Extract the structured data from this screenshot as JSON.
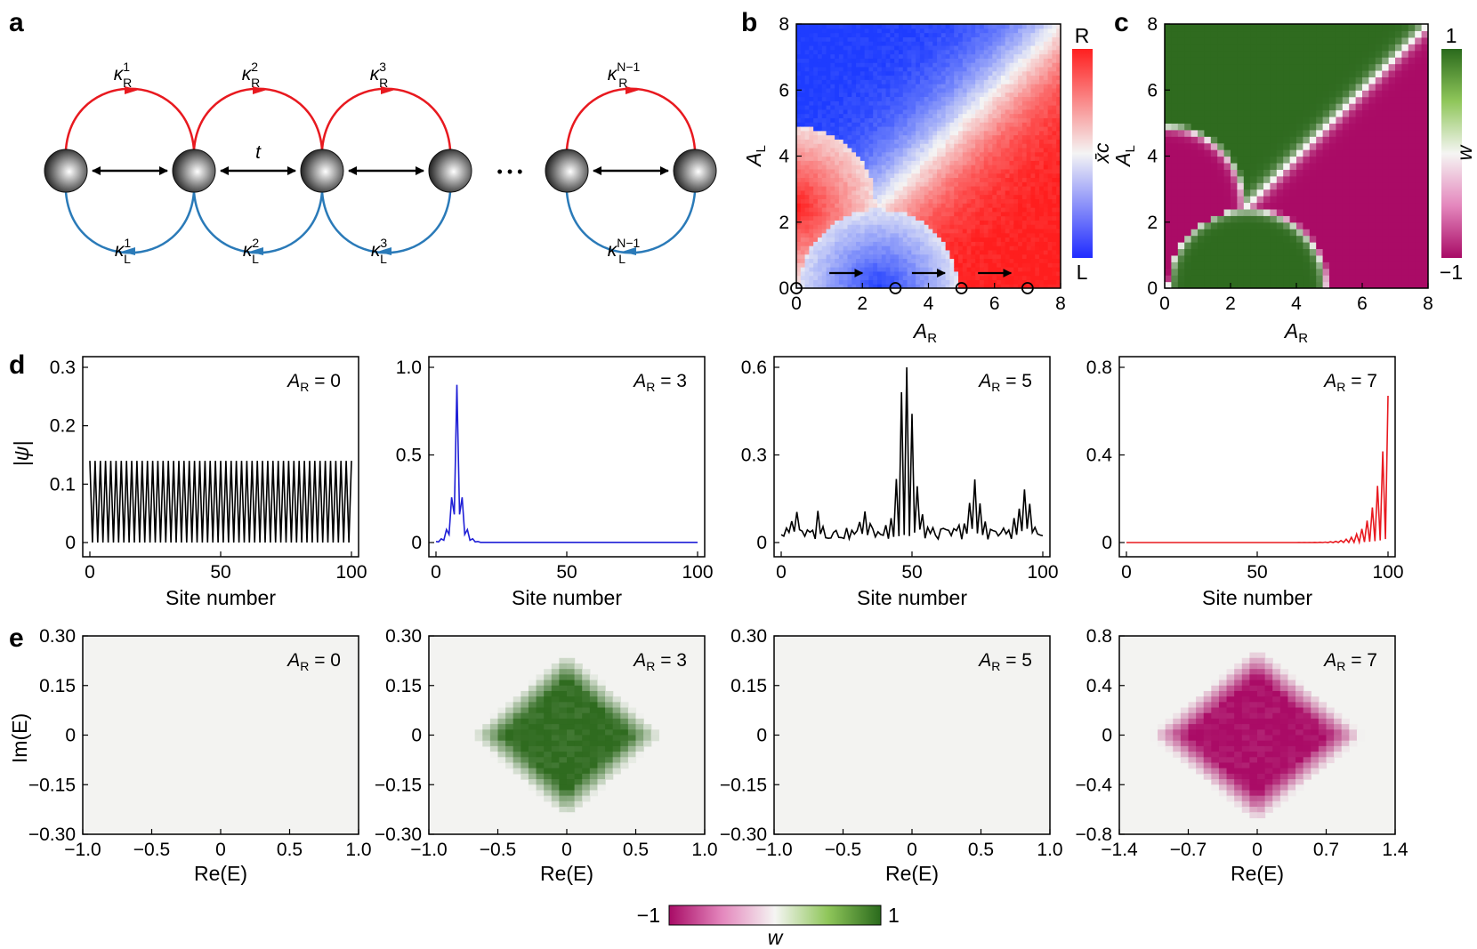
{
  "panel_labels": {
    "a": "a",
    "b": "b",
    "c": "c",
    "d": "d",
    "e": "e"
  },
  "panel_a": {
    "kappa_R": [
      "1",
      "2",
      "3",
      "N−1"
    ],
    "kappa_L": [
      "1",
      "2",
      "3",
      "N−1"
    ],
    "kappa_symbol": "κ",
    "kappa_R_sub": "R",
    "kappa_L_sub": "L",
    "hop_label": "t",
    "ellipsis": "• • •",
    "colors": {
      "right": "#e8191f",
      "left": "#2a7ab8"
    }
  },
  "panel_b": {
    "x_ticks": [
      "0",
      "2",
      "4",
      "6",
      "8"
    ],
    "y_ticks": [
      "0",
      "2",
      "4",
      "6",
      "8"
    ],
    "xlabel_main": "A",
    "xlabel_sub": "R",
    "ylabel_main": "A",
    "ylabel_sub": "L",
    "colorbar_top": "R",
    "colorbar_bottom": "L",
    "colorbar_label": "x̄c",
    "circle_markers_AR": [
      0,
      3,
      5,
      7
    ],
    "arrows_AR": [
      [
        1,
        2
      ],
      [
        3.5,
        4.5
      ],
      [
        5.5,
        6.5
      ]
    ]
  },
  "panel_c": {
    "x_ticks": [
      "0",
      "2",
      "4",
      "6",
      "8"
    ],
    "y_ticks": [
      "0",
      "2",
      "4",
      "6",
      "8"
    ],
    "xlabel_main": "A",
    "xlabel_sub": "R",
    "ylabel_main": "A",
    "ylabel_sub": "L",
    "colorbar_top": "1",
    "colorbar_bottom": "−1",
    "colorbar_label": "w"
  },
  "panel_d": {
    "ylabel": "|ψ|",
    "xlabel": "Site number",
    "plots": [
      {
        "ann": "A",
        "ann_sub": "R",
        "ann_val": "= 0",
        "y_ticks": [
          "0",
          "0.1",
          "0.2",
          "0.3"
        ],
        "x_ticks": [
          "0",
          "50",
          "100"
        ],
        "ylim": [
          0,
          0.3
        ],
        "color": "#000000",
        "profile": "extended"
      },
      {
        "ann": "A",
        "ann_sub": "R",
        "ann_val": "= 3",
        "y_ticks": [
          "0",
          "0.5",
          "1.0"
        ],
        "x_ticks": [
          "0",
          "50",
          "100"
        ],
        "ylim": [
          0,
          1.0
        ],
        "color": "#1f1fd6",
        "profile": "left"
      },
      {
        "ann": "A",
        "ann_sub": "R",
        "ann_val": "= 5",
        "y_ticks": [
          "0",
          "0.3",
          "0.6"
        ],
        "x_ticks": [
          "0",
          "50",
          "100"
        ],
        "ylim": [
          0,
          0.6
        ],
        "color": "#000000",
        "profile": "multi"
      },
      {
        "ann": "A",
        "ann_sub": "R",
        "ann_val": "= 7",
        "y_ticks": [
          "0",
          "0.4",
          "0.8"
        ],
        "x_ticks": [
          "0",
          "50",
          "100"
        ],
        "ylim": [
          0,
          0.8
        ],
        "color": "#e8191f",
        "profile": "right"
      }
    ]
  },
  "panel_e": {
    "ylabel": "Im(E)",
    "xlabel": "Re(E)",
    "plots": [
      {
        "ann": "A",
        "ann_sub": "R",
        "ann_val": "= 0",
        "y_ticks": [
          "−0.30",
          "−0.15",
          "0",
          "0.15",
          "0.30"
        ],
        "x_ticks": [
          "−1.0",
          "−0.5",
          "0",
          "0.5",
          "1.0"
        ],
        "winding": 0
      },
      {
        "ann": "A",
        "ann_sub": "R",
        "ann_val": "= 3",
        "y_ticks": [
          "−0.30",
          "−0.15",
          "0",
          "0.15",
          "0.30"
        ],
        "x_ticks": [
          "−1.0",
          "−0.5",
          "0",
          "0.5",
          "1.0"
        ],
        "winding": 1
      },
      {
        "ann": "A",
        "ann_sub": "R",
        "ann_val": "= 5",
        "y_ticks": [
          "−0.30",
          "−0.15",
          "0",
          "0.15",
          "0.30"
        ],
        "x_ticks": [
          "−1.0",
          "−0.5",
          "0",
          "0.5",
          "1.0"
        ],
        "winding": 0
      },
      {
        "ann": "A",
        "ann_sub": "R",
        "ann_val": "= 7",
        "y_ticks": [
          "−0.8",
          "−0.4",
          "0",
          "0.4",
          "0.8"
        ],
        "x_ticks": [
          "−1.4",
          "−0.7",
          "0",
          "0.7",
          "1.4"
        ],
        "winding": -1
      }
    ],
    "colorbar": {
      "min": "−1",
      "max": "1",
      "label": "w"
    }
  },
  "colors": {
    "blue": "#1a3ff0",
    "red": "#f01a1a",
    "green": "#2f6b1f",
    "magenta": "#b0106a",
    "pale": "#f3f3f1"
  }
}
